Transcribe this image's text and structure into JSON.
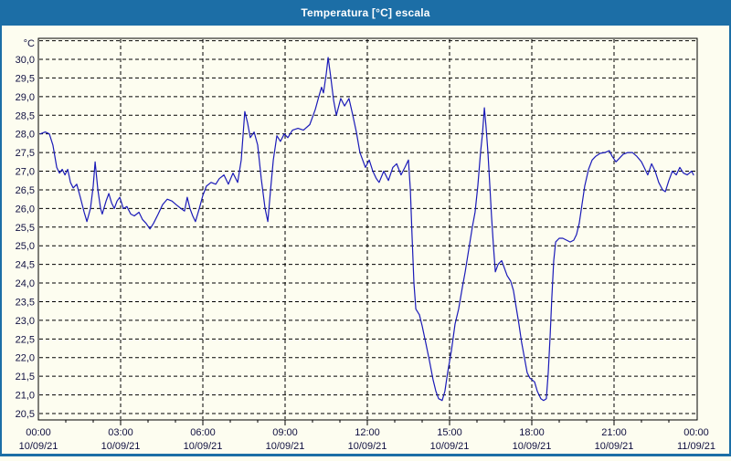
{
  "window": {
    "title": "Temperatura [°C] escala"
  },
  "colors": {
    "titlebar": "#1c6ea6",
    "window_bg": "#fdfdf0",
    "plot_bg": "#fdfdf0",
    "line": "#1a1ab8",
    "grid": "#000000",
    "axis": "#000000",
    "label": "#101040",
    "title_text": "#ffffff"
  },
  "chart_data": {
    "type": "line",
    "title": "Temperatura [°C] escala",
    "legend": "none",
    "grid": {
      "dashed": true,
      "horizontal_step": 0.5,
      "vertical_step_hours": 3
    },
    "y_axis": {
      "unit_label": "°C",
      "min": 20.3,
      "max": 30.6,
      "tick_min": 20.5,
      "tick_max": 30.0,
      "tick_step": 0.5,
      "extra_gridline": 30.5,
      "decimal_separator": ","
    },
    "x_axis": {
      "unit": "time",
      "min_hour": 0,
      "max_hour": 24,
      "major_tick_hours": 3,
      "minor_tick_hours": 1,
      "ticks": [
        {
          "hour": 0,
          "time": "00:00",
          "date": "10/09/21"
        },
        {
          "hour": 3,
          "time": "03:00",
          "date": "10/09/21"
        },
        {
          "hour": 6,
          "time": "06:00",
          "date": "10/09/21"
        },
        {
          "hour": 9,
          "time": "09:00",
          "date": "10/09/21"
        },
        {
          "hour": 12,
          "time": "12:00",
          "date": "10/09/21"
        },
        {
          "hour": 15,
          "time": "15:00",
          "date": "10/09/21"
        },
        {
          "hour": 18,
          "time": "18:00",
          "date": "10/09/21"
        },
        {
          "hour": 21,
          "time": "21:00",
          "date": "10/09/21"
        },
        {
          "hour": 24,
          "time": "00:00",
          "date": "11/09/21"
        }
      ]
    },
    "series": [
      {
        "name": "Temperatura",
        "color": "#1a1ab8",
        "points": [
          [
            0.07,
            28.0
          ],
          [
            0.25,
            28.05
          ],
          [
            0.4,
            28.0
          ],
          [
            0.53,
            27.7
          ],
          [
            0.67,
            27.1
          ],
          [
            0.77,
            26.95
          ],
          [
            0.87,
            27.05
          ],
          [
            0.97,
            26.9
          ],
          [
            1.07,
            27.05
          ],
          [
            1.17,
            26.7
          ],
          [
            1.27,
            26.55
          ],
          [
            1.4,
            26.65
          ],
          [
            1.53,
            26.3
          ],
          [
            1.67,
            25.9
          ],
          [
            1.77,
            25.65
          ],
          [
            1.9,
            26.0
          ],
          [
            2.0,
            26.6
          ],
          [
            2.07,
            27.25
          ],
          [
            2.17,
            26.5
          ],
          [
            2.27,
            26.0
          ],
          [
            2.33,
            25.85
          ],
          [
            2.47,
            26.2
          ],
          [
            2.57,
            26.4
          ],
          [
            2.67,
            26.15
          ],
          [
            2.77,
            26.0
          ],
          [
            2.87,
            26.2
          ],
          [
            2.97,
            26.3
          ],
          [
            3.1,
            26.0
          ],
          [
            3.23,
            26.05
          ],
          [
            3.37,
            25.85
          ],
          [
            3.5,
            25.8
          ],
          [
            3.67,
            25.9
          ],
          [
            3.8,
            25.7
          ],
          [
            3.93,
            25.6
          ],
          [
            4.07,
            25.45
          ],
          [
            4.2,
            25.6
          ],
          [
            4.37,
            25.85
          ],
          [
            4.53,
            26.1
          ],
          [
            4.7,
            26.25
          ],
          [
            4.87,
            26.2
          ],
          [
            5.03,
            26.1
          ],
          [
            5.2,
            26.0
          ],
          [
            5.33,
            25.93
          ],
          [
            5.43,
            26.3
          ],
          [
            5.53,
            26.0
          ],
          [
            5.63,
            25.8
          ],
          [
            5.73,
            25.65
          ],
          [
            5.87,
            26.0
          ],
          [
            6.0,
            26.35
          ],
          [
            6.13,
            26.6
          ],
          [
            6.3,
            26.7
          ],
          [
            6.47,
            26.65
          ],
          [
            6.6,
            26.8
          ],
          [
            6.77,
            26.9
          ],
          [
            6.93,
            26.65
          ],
          [
            7.1,
            26.95
          ],
          [
            7.27,
            26.7
          ],
          [
            7.4,
            27.3
          ],
          [
            7.53,
            28.6
          ],
          [
            7.63,
            28.3
          ],
          [
            7.73,
            27.9
          ],
          [
            7.87,
            28.05
          ],
          [
            8.0,
            27.7
          ],
          [
            8.13,
            26.8
          ],
          [
            8.27,
            26.0
          ],
          [
            8.37,
            25.65
          ],
          [
            8.47,
            26.5
          ],
          [
            8.57,
            27.3
          ],
          [
            8.7,
            27.95
          ],
          [
            8.83,
            27.8
          ],
          [
            8.97,
            28.0
          ],
          [
            9.1,
            27.9
          ],
          [
            9.27,
            28.1
          ],
          [
            9.47,
            28.15
          ],
          [
            9.67,
            28.1
          ],
          [
            9.9,
            28.25
          ],
          [
            10.1,
            28.65
          ],
          [
            10.23,
            29.0
          ],
          [
            10.33,
            29.25
          ],
          [
            10.4,
            29.1
          ],
          [
            10.5,
            29.6
          ],
          [
            10.57,
            30.05
          ],
          [
            10.67,
            29.5
          ],
          [
            10.77,
            28.9
          ],
          [
            10.87,
            28.5
          ],
          [
            11.03,
            28.95
          ],
          [
            11.17,
            28.75
          ],
          [
            11.33,
            28.95
          ],
          [
            11.47,
            28.5
          ],
          [
            11.6,
            28.05
          ],
          [
            11.73,
            27.5
          ],
          [
            11.93,
            27.1
          ],
          [
            12.07,
            27.3
          ],
          [
            12.2,
            27.0
          ],
          [
            12.33,
            26.8
          ],
          [
            12.43,
            26.7
          ],
          [
            12.6,
            27.0
          ],
          [
            12.77,
            26.75
          ],
          [
            12.93,
            27.1
          ],
          [
            13.07,
            27.2
          ],
          [
            13.23,
            26.9
          ],
          [
            13.37,
            27.1
          ],
          [
            13.5,
            27.3
          ],
          [
            13.57,
            26.5
          ],
          [
            13.63,
            25.3
          ],
          [
            13.7,
            24.0
          ],
          [
            13.77,
            23.3
          ],
          [
            13.9,
            23.15
          ],
          [
            14.0,
            22.85
          ],
          [
            14.13,
            22.4
          ],
          [
            14.27,
            21.9
          ],
          [
            14.4,
            21.4
          ],
          [
            14.5,
            21.1
          ],
          [
            14.6,
            20.9
          ],
          [
            14.73,
            20.85
          ],
          [
            14.83,
            21.1
          ],
          [
            14.93,
            21.6
          ],
          [
            15.07,
            22.2
          ],
          [
            15.2,
            22.9
          ],
          [
            15.33,
            23.3
          ],
          [
            15.47,
            23.9
          ],
          [
            15.57,
            24.3
          ],
          [
            15.7,
            24.9
          ],
          [
            15.83,
            25.5
          ],
          [
            15.93,
            25.9
          ],
          [
            16.03,
            26.6
          ],
          [
            16.13,
            27.5
          ],
          [
            16.2,
            28.0
          ],
          [
            16.27,
            28.7
          ],
          [
            16.33,
            28.2
          ],
          [
            16.4,
            27.5
          ],
          [
            16.47,
            26.6
          ],
          [
            16.53,
            25.8
          ],
          [
            16.6,
            25.0
          ],
          [
            16.67,
            24.3
          ],
          [
            16.77,
            24.5
          ],
          [
            16.9,
            24.6
          ],
          [
            17.0,
            24.4
          ],
          [
            17.1,
            24.2
          ],
          [
            17.23,
            24.05
          ],
          [
            17.33,
            23.8
          ],
          [
            17.43,
            23.35
          ],
          [
            17.53,
            22.9
          ],
          [
            17.63,
            22.4
          ],
          [
            17.73,
            22.0
          ],
          [
            17.83,
            21.6
          ],
          [
            17.93,
            21.45
          ],
          [
            18.1,
            21.35
          ],
          [
            18.2,
            21.1
          ],
          [
            18.33,
            20.9
          ],
          [
            18.43,
            20.85
          ],
          [
            18.53,
            20.9
          ],
          [
            18.6,
            21.6
          ],
          [
            18.67,
            22.6
          ],
          [
            18.73,
            23.6
          ],
          [
            18.8,
            24.6
          ],
          [
            18.87,
            25.1
          ],
          [
            19.0,
            25.2
          ],
          [
            19.13,
            25.2
          ],
          [
            19.27,
            25.15
          ],
          [
            19.4,
            25.1
          ],
          [
            19.53,
            25.15
          ],
          [
            19.63,
            25.3
          ],
          [
            19.73,
            25.6
          ],
          [
            19.83,
            26.1
          ],
          [
            19.93,
            26.6
          ],
          [
            20.07,
            27.05
          ],
          [
            20.2,
            27.3
          ],
          [
            20.33,
            27.4
          ],
          [
            20.5,
            27.48
          ],
          [
            20.67,
            27.5
          ],
          [
            20.83,
            27.55
          ],
          [
            20.93,
            27.4
          ],
          [
            21.07,
            27.25
          ],
          [
            21.2,
            27.35
          ],
          [
            21.33,
            27.45
          ],
          [
            21.5,
            27.5
          ],
          [
            21.67,
            27.5
          ],
          [
            21.83,
            27.4
          ],
          [
            22.0,
            27.25
          ],
          [
            22.1,
            27.1
          ],
          [
            22.23,
            26.9
          ],
          [
            22.37,
            27.2
          ],
          [
            22.5,
            27.0
          ],
          [
            22.63,
            26.7
          ],
          [
            22.77,
            26.5
          ],
          [
            22.87,
            26.45
          ],
          [
            23.0,
            26.75
          ],
          [
            23.13,
            27.0
          ],
          [
            23.27,
            26.9
          ],
          [
            23.4,
            27.1
          ],
          [
            23.53,
            26.95
          ],
          [
            23.67,
            26.9
          ],
          [
            23.83,
            27.0
          ],
          [
            23.9,
            26.9
          ]
        ]
      }
    ]
  }
}
